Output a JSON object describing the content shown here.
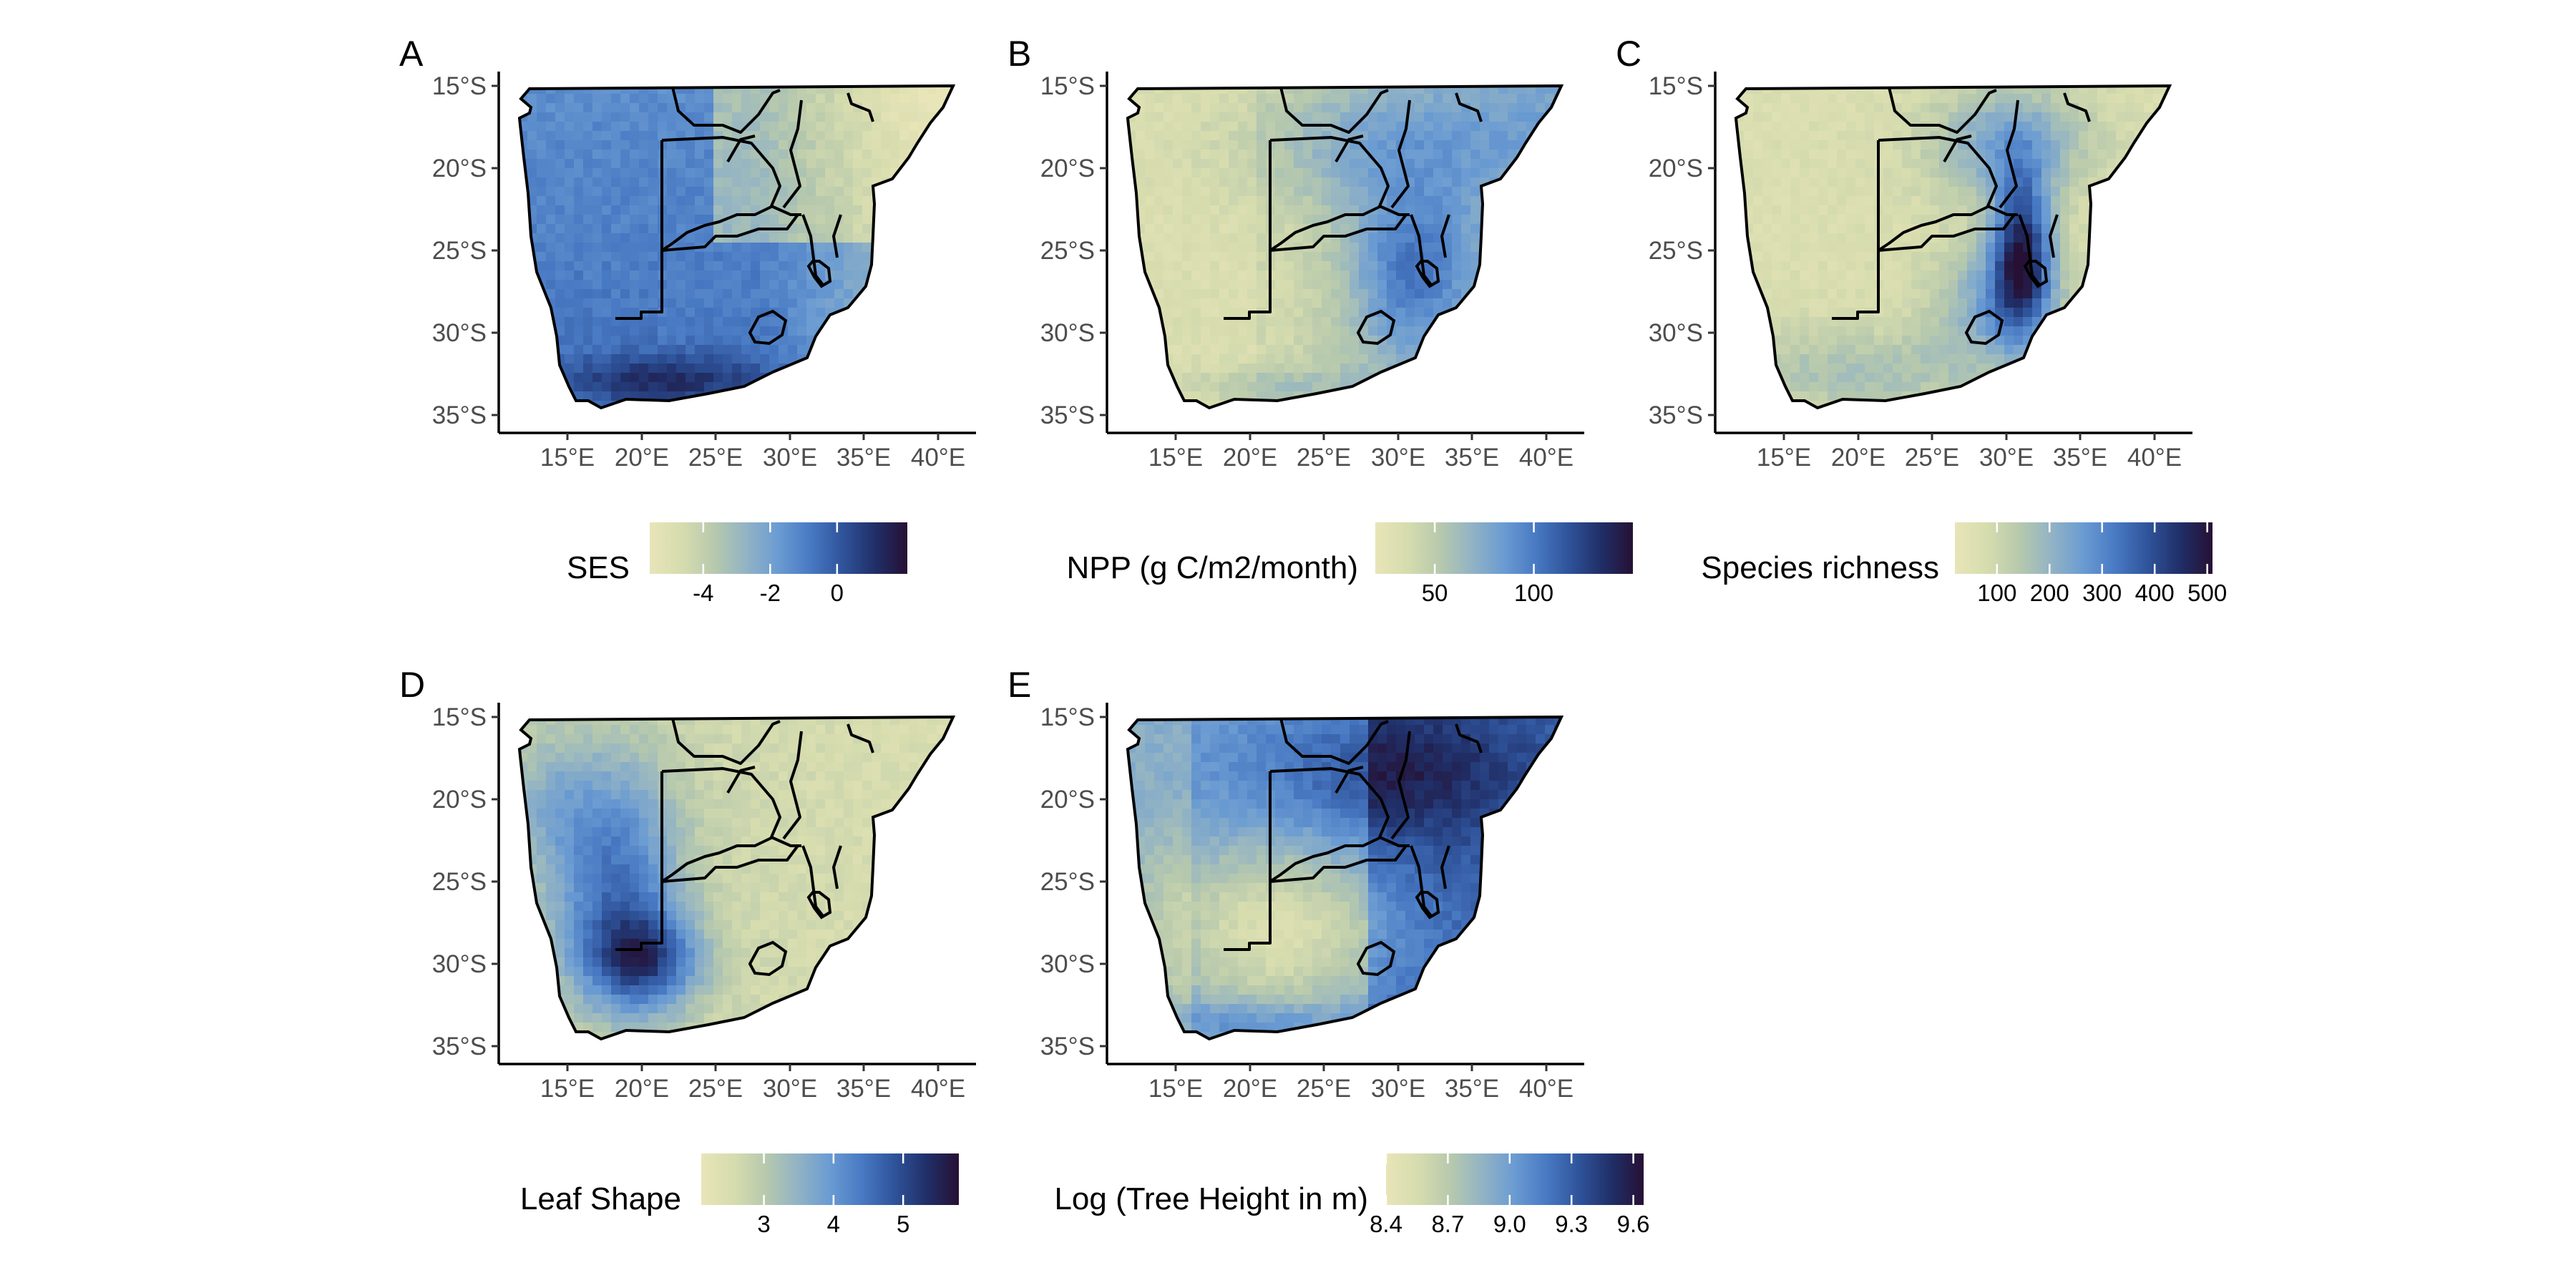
{
  "palette": [
    "#e8e5b8",
    "#d6dcae",
    "#b7c9ad",
    "#92b3c4",
    "#6a9bd2",
    "#4879c3",
    "#2f539a",
    "#202f68",
    "#261034"
  ],
  "border_color": "#000000",
  "panels": [
    {
      "letter": "A",
      "legend_title": "SES",
      "legend_min": -5.6,
      "legend_max": 2.1,
      "legend_ticks": [
        {
          "v": -4,
          "label": "-4"
        },
        {
          "v": -2,
          "label": "-2"
        },
        {
          "v": 0,
          "label": "0"
        }
      ],
      "x_ticks": [
        "15°E",
        "20°E",
        "25°E",
        "30°E",
        "35°E",
        "40°E"
      ],
      "y_ticks": [
        "15°S",
        "20°S",
        "25°S",
        "30°S",
        "35°S"
      ],
      "pattern": "ses"
    },
    {
      "letter": "B",
      "legend_title": "NPP (g C/m2/month)",
      "legend_min": 20,
      "legend_max": 150,
      "legend_ticks": [
        {
          "v": 50,
          "label": "50"
        },
        {
          "v": 100,
          "label": "100"
        }
      ],
      "x_ticks": [
        "15°E",
        "20°E",
        "25°E",
        "30°E",
        "35°E",
        "40°E"
      ],
      "y_ticks": [
        "15°S",
        "20°S",
        "25°S",
        "30°S",
        "35°S"
      ],
      "pattern": "npp"
    },
    {
      "letter": "C",
      "legend_title": "Species richness",
      "legend_min": 20,
      "legend_max": 510,
      "legend_ticks": [
        {
          "v": 100,
          "label": "100"
        },
        {
          "v": 200,
          "label": "200"
        },
        {
          "v": 300,
          "label": "300"
        },
        {
          "v": 400,
          "label": "400"
        },
        {
          "v": 500,
          "label": "500"
        }
      ],
      "x_ticks": [
        "15°E",
        "20°E",
        "25°E",
        "30°E",
        "35°E",
        "40°E"
      ],
      "y_ticks": [
        "15°S",
        "20°S",
        "25°S",
        "30°S",
        "35°S"
      ],
      "pattern": "richness"
    },
    {
      "letter": "D",
      "legend_title": "Leaf Shape",
      "legend_min": 2.1,
      "legend_max": 5.8,
      "legend_ticks": [
        {
          "v": 3,
          "label": "3"
        },
        {
          "v": 4,
          "label": "4"
        },
        {
          "v": 5,
          "label": "5"
        }
      ],
      "x_ticks": [
        "15°E",
        "20°E",
        "25°E",
        "30°E",
        "35°E",
        "40°E"
      ],
      "y_ticks": [
        "15°S",
        "20°S",
        "25°S",
        "30°S",
        "35°S"
      ],
      "pattern": "leaf"
    },
    {
      "letter": "E",
      "legend_title": "Log (Tree Height in m)",
      "legend_min": 8.4,
      "legend_max": 9.65,
      "legend_ticks": [
        {
          "v": 8.4,
          "label": "8.4"
        },
        {
          "v": 8.7,
          "label": "8.7"
        },
        {
          "v": 9.0,
          "label": "9.0"
        },
        {
          "v": 9.3,
          "label": "9.3"
        },
        {
          "v": 9.6,
          "label": "9.6"
        }
      ],
      "x_ticks": [
        "15°E",
        "20°E",
        "25°E",
        "30°E",
        "35°E",
        "40°E"
      ],
      "y_ticks": [
        "15°S",
        "20°S",
        "25°S",
        "30°S",
        "35°S"
      ],
      "pattern": "height"
    }
  ]
}
